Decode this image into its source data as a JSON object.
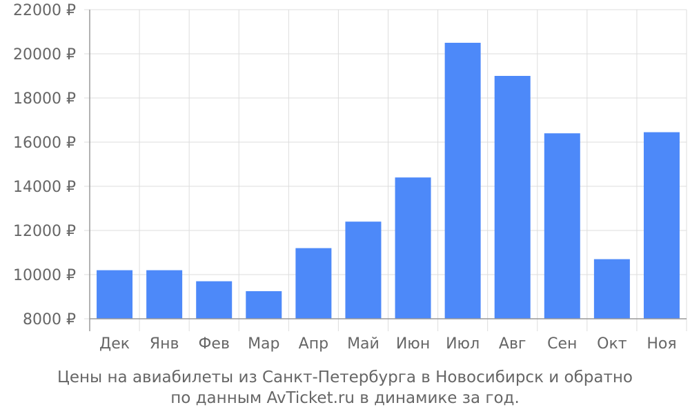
{
  "caption": {
    "line1": "Цены на авиабилеты из Санкт-Петербурга в Новосибирск и обратно",
    "line2": "по данным AvTicket.ru в динамике за год."
  },
  "chart_data": {
    "type": "bar",
    "title": "",
    "xlabel": "",
    "ylabel": "",
    "categories": [
      "Дек",
      "Янв",
      "Фев",
      "Мар",
      "Апр",
      "Май",
      "Июн",
      "Июл",
      "Авг",
      "Сен",
      "Окт",
      "Ноя"
    ],
    "values": [
      10200,
      10200,
      9700,
      9250,
      11200,
      12400,
      14400,
      20500,
      19000,
      16400,
      10700,
      16450
    ],
    "ylim": [
      8000,
      22000
    ],
    "yticks": [
      8000,
      10000,
      12000,
      14000,
      16000,
      18000,
      20000,
      22000
    ],
    "ytick_labels": [
      "8000 ₽",
      "10000 ₽",
      "12000 ₽",
      "14000 ₽",
      "16000 ₽",
      "18000 ₽",
      "20000 ₽",
      "22000 ₽"
    ],
    "grid": true,
    "colors": {
      "bar": "#4d89f9",
      "grid": "#dddddd",
      "axis": "#999999",
      "text": "#666666"
    }
  }
}
